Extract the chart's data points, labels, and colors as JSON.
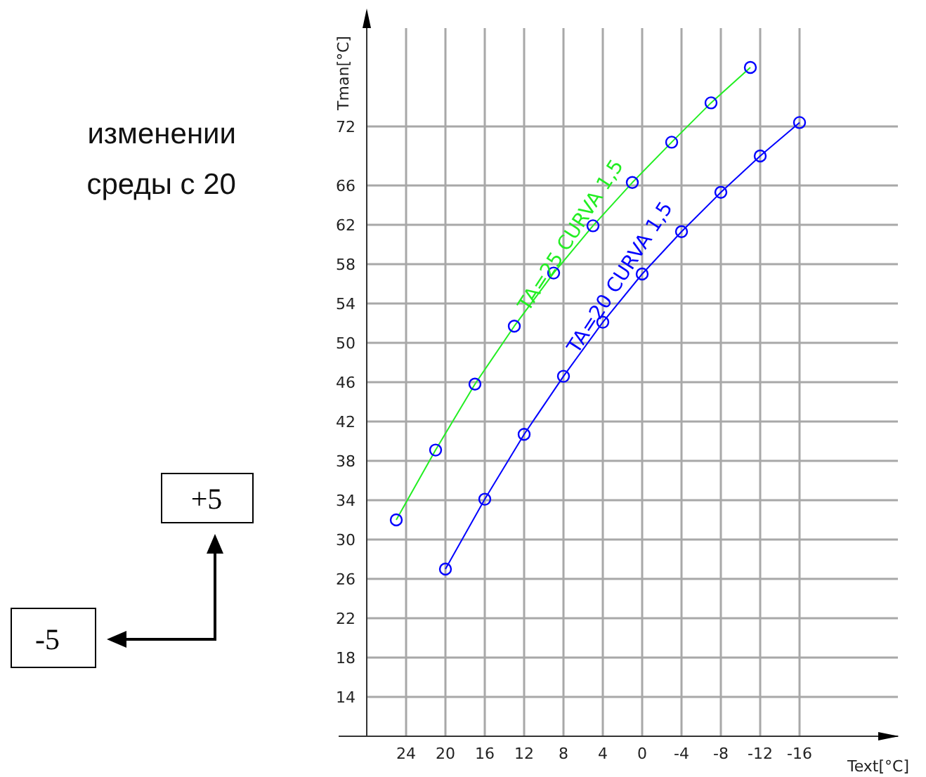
{
  "chart_data": {
    "type": "line",
    "xlabel": "Text[°C]",
    "ylabel": "Tman[°C]",
    "annotations": [
      "изменении",
      "среды с 20",
      "+5",
      "-5"
    ],
    "xlim": [
      28,
      -26
    ],
    "xticks": [
      24,
      20,
      16,
      12,
      8,
      4,
      0,
      -4,
      -8,
      -12,
      -16
    ],
    "ylim": [
      10,
      82
    ],
    "yticks": [
      14,
      18,
      22,
      26,
      30,
      34,
      38,
      42,
      46,
      50,
      54,
      58,
      62,
      66,
      72
    ],
    "grid": true,
    "marker": "circle",
    "line_style": "solid",
    "series": [
      {
        "name": "TA=25 CURVA 1,5",
        "color": "#22ee22",
        "x": [
          25,
          21,
          17,
          13,
          9,
          5,
          1,
          -3,
          -7,
          -11
        ],
        "values": [
          32,
          39.1,
          45.8,
          51.7,
          57.1,
          61.9,
          66.3,
          70.4,
          74.4,
          78
        ]
      },
      {
        "name": "TA=20 CURVA 1,5",
        "color": "#0000ff",
        "x": [
          20,
          16,
          12,
          8,
          4,
          0,
          -4,
          -8,
          -12,
          -16
        ],
        "values": [
          27,
          34.1,
          40.7,
          46.6,
          52.1,
          57,
          61.3,
          65.3,
          69,
          72.4
        ]
      }
    ]
  }
}
